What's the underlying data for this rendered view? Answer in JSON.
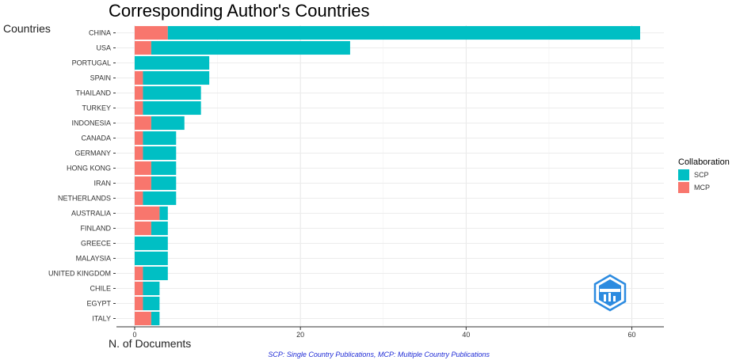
{
  "chart_data": {
    "type": "bar",
    "orientation": "horizontal",
    "stacked": true,
    "title": "Corresponding Author's Countries",
    "xlabel": "N. of Documents",
    "ylabel": "Countries",
    "xlim": [
      0,
      64
    ],
    "xticks": [
      0,
      20,
      40,
      60
    ],
    "grid": true,
    "legend_position": "right",
    "categories": [
      "CHINA",
      "USA",
      "PORTUGAL",
      "SPAIN",
      "THAILAND",
      "TURKEY",
      "INDONESIA",
      "CANADA",
      "GERMANY",
      "HONG KONG",
      "IRAN",
      "NETHERLANDS",
      "AUSTRALIA",
      "FINLAND",
      "GREECE",
      "MALAYSIA",
      "UNITED KINGDOM",
      "CHILE",
      "EGYPT",
      "ITALY"
    ],
    "series": [
      {
        "name": "MCP",
        "color": "#f8766d",
        "values": [
          4,
          2,
          0,
          1,
          1,
          1,
          2,
          1,
          1,
          2,
          2,
          1,
          3,
          2,
          0,
          0,
          1,
          1,
          1,
          2
        ]
      },
      {
        "name": "SCP",
        "color": "#00bfc4",
        "values": [
          57,
          24,
          9,
          8,
          7,
          7,
          4,
          4,
          4,
          3,
          3,
          4,
          1,
          2,
          4,
          4,
          3,
          2,
          2,
          1
        ]
      }
    ],
    "legend": {
      "title": "Collaboration",
      "items": [
        {
          "label": "SCP",
          "color": "#00bfc4"
        },
        {
          "label": "MCP",
          "color": "#f8766d"
        }
      ]
    },
    "caption": "SCP: Single Country Publications, MCP: Multiple Country Publications"
  },
  "logo": {
    "name": "bibliometrix-logo",
    "color": "#2c8be0"
  }
}
